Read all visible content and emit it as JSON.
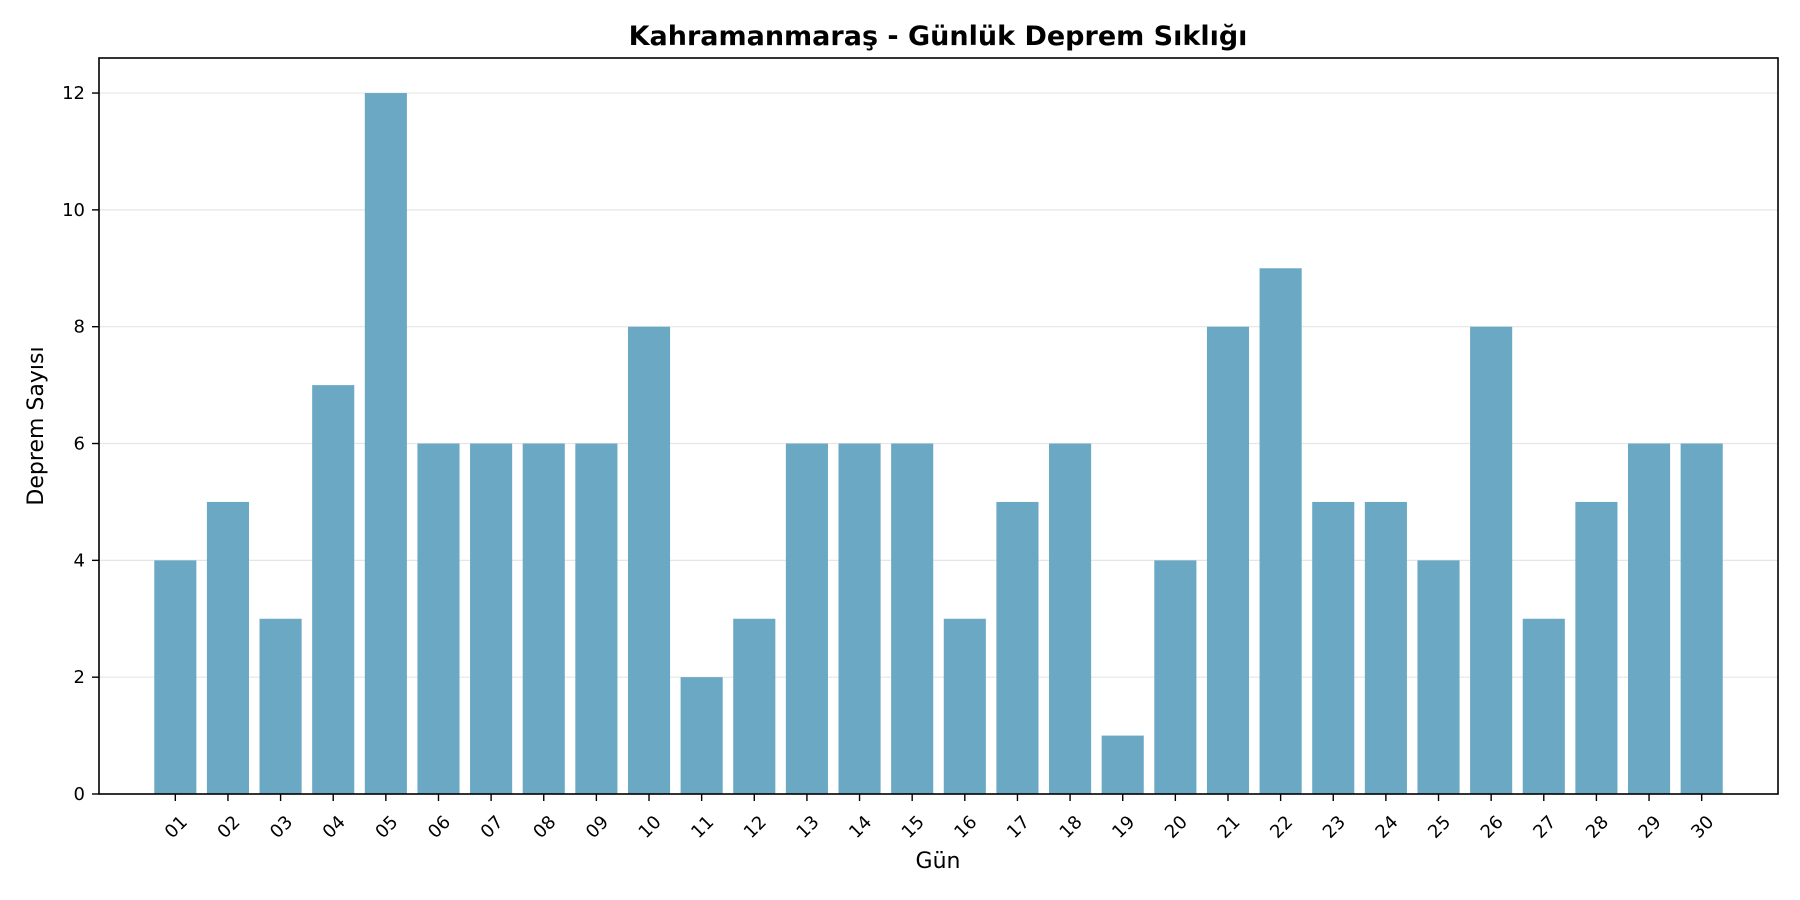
{
  "chart_data": {
    "type": "bar",
    "title": "Kahramanmaraş - Günlük Deprem Sıklığı",
    "xlabel": "Gün",
    "ylabel": "Deprem Sayısı",
    "categories": [
      "01",
      "02",
      "03",
      "04",
      "05",
      "06",
      "07",
      "08",
      "09",
      "10",
      "11",
      "12",
      "13",
      "14",
      "15",
      "16",
      "17",
      "18",
      "19",
      "20",
      "21",
      "22",
      "23",
      "24",
      "25",
      "26",
      "27",
      "28",
      "29",
      "30"
    ],
    "values": [
      4,
      5,
      3,
      7,
      12,
      6,
      6,
      6,
      6,
      8,
      2,
      3,
      6,
      6,
      6,
      3,
      5,
      6,
      1,
      4,
      8,
      9,
      5,
      5,
      4,
      8,
      3,
      5,
      6,
      6
    ],
    "ylim": [
      0,
      12.6
    ],
    "yticks": [
      0,
      2,
      4,
      6,
      8,
      10,
      12
    ],
    "grid": "horizontal",
    "bar_color": "#6aa8c4",
    "grid_color": "#e6e6e6"
  }
}
